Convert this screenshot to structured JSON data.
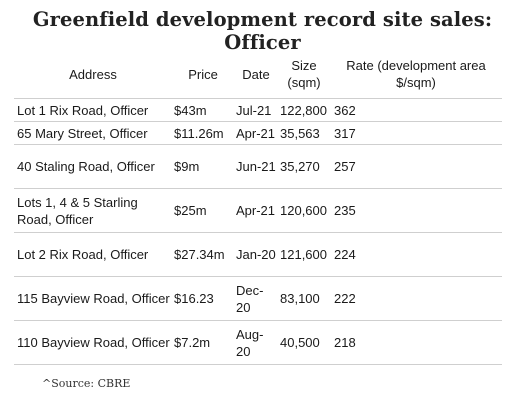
{
  "title": "Greenfield development record site sales: Officer",
  "table": {
    "headers": {
      "address": "Address",
      "price": "Price",
      "date": "Date",
      "size": "Size (sqm)",
      "rate": "Rate (development area $/sqm)"
    },
    "rows": [
      {
        "address": "Lot 1 Rix Road, Officer",
        "price": "$43m",
        "date": "Jul-21",
        "size": "122,800",
        "rate": "362"
      },
      {
        "address": "65 Mary Street, Officer",
        "price": "$11.26m",
        "date": "Apr-21",
        "size": "35,563",
        "rate": "317"
      },
      {
        "address": "40 Staling Road, Officer",
        "price": "$9m",
        "date": "Jun-21",
        "size": "35,270",
        "rate": "257"
      },
      {
        "address": "Lots 1, 4 & 5 Starling Road, Officer",
        "price": "$25m",
        "date": "Apr-21",
        "size": "120,600",
        "rate": "235"
      },
      {
        "address": "Lot 2 Rix Road, Officer",
        "price": "$27.34m",
        "date": "Jan-20",
        "size": "121,600",
        "rate": "224"
      },
      {
        "address": "115 Bayview Road, Officer",
        "price": "$16.23",
        "date": "Dec-20",
        "size": "83,100",
        "rate": "222"
      },
      {
        "address": "110 Bayview Road, Officer",
        "price": "$7.2m",
        "date": "Aug-20",
        "size": "40,500",
        "rate": "218"
      }
    ]
  },
  "source": "^Source: CBRE"
}
